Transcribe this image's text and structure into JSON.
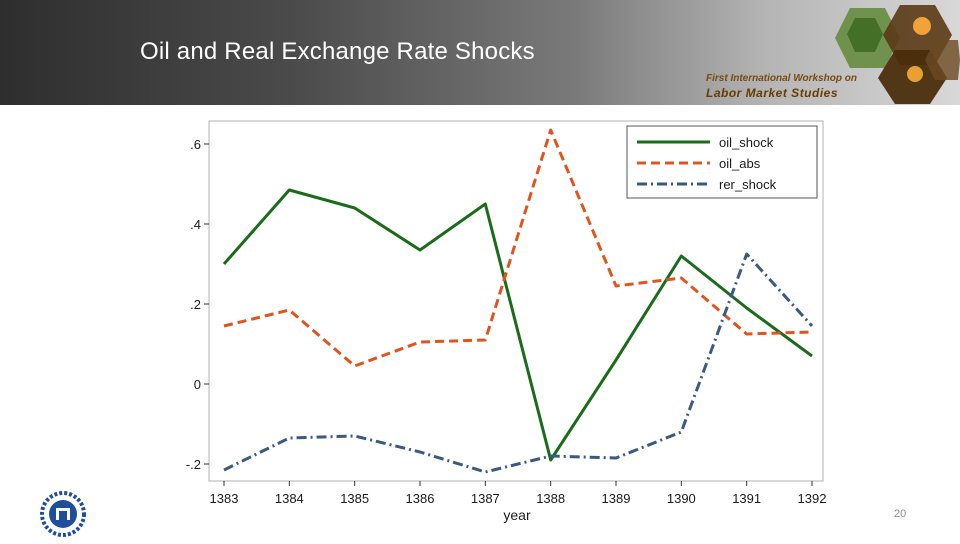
{
  "slide": {
    "title": "Oil and Real Exchange Rate Shocks",
    "page_number": "20",
    "workshop_line1": "First International Workshop on",
    "workshop_line2": "Labor Market Studies"
  },
  "colors": {
    "oil_shock": "#1a6b1a",
    "oil_abs": "#e0541d",
    "rer_shock": "#3a5a80"
  },
  "chart_data": {
    "type": "line",
    "title": "",
    "xlabel": "year",
    "ylabel": "",
    "categories": [
      "1383",
      "1384",
      "1385",
      "1386",
      "1387",
      "1388",
      "1389",
      "1390",
      "1391",
      "1392"
    ],
    "yticks": [
      -0.2,
      0,
      0.2,
      0.4,
      0.6
    ],
    "ytick_labels": [
      "-.2",
      "0",
      ".2",
      ".4",
      ".6"
    ],
    "ylim": [
      -0.225,
      0.64
    ],
    "legend_position": "top-right",
    "series": [
      {
        "name": "oil_shock",
        "style": "solid",
        "values": [
          0.3,
          0.485,
          0.44,
          0.335,
          0.45,
          -0.19,
          0.06,
          0.32,
          0.19,
          0.07
        ]
      },
      {
        "name": "oil_abs",
        "style": "dashed",
        "values": [
          0.145,
          0.185,
          0.045,
          0.105,
          0.11,
          0.635,
          0.245,
          0.265,
          0.125,
          0.13
        ]
      },
      {
        "name": "rer_shock",
        "style": "dashdot",
        "values": [
          -0.215,
          -0.135,
          -0.13,
          -0.17,
          -0.22,
          -0.18,
          -0.185,
          -0.12,
          0.325,
          0.145
        ]
      }
    ]
  }
}
